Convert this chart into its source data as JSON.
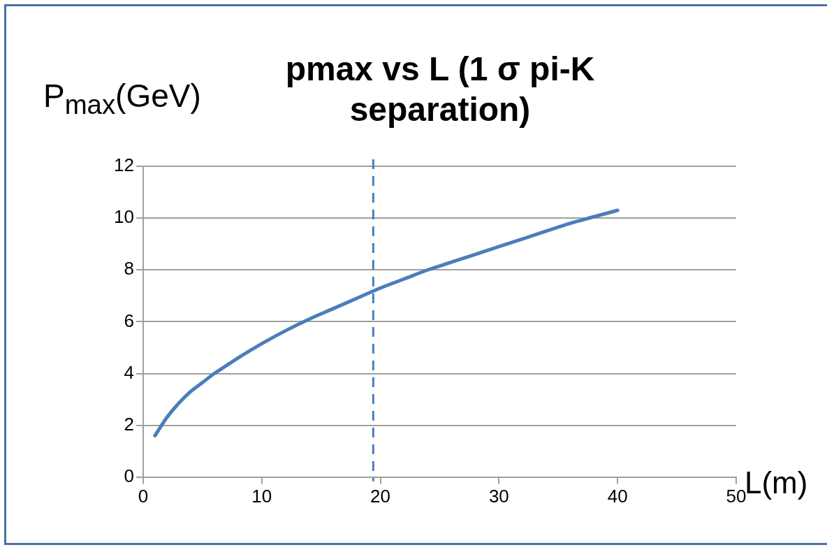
{
  "chart_data": {
    "type": "line",
    "title": "pmax vs L (1 σ pi-K separation)",
    "xlabel": "L(m)",
    "ylabel": "P$_{max}$(GeV)",
    "series": [
      {
        "color": "#4a7ebb",
        "x": [
          1,
          2,
          3,
          4,
          5,
          6,
          7,
          8,
          10,
          12,
          14,
          16,
          18,
          20,
          22,
          24,
          26,
          28,
          30,
          32,
          34,
          36,
          38,
          40
        ],
        "values": [
          1.6,
          2.3,
          2.85,
          3.3,
          3.65,
          4.0,
          4.3,
          4.6,
          5.15,
          5.65,
          6.1,
          6.5,
          6.9,
          7.3,
          7.65,
          8.0,
          8.3,
          8.6,
          8.9,
          9.2,
          9.5,
          9.8,
          10.05,
          10.3
        ]
      }
    ],
    "xlim": [
      0,
      50
    ],
    "xticks": [
      0,
      10,
      20,
      30,
      40,
      50
    ],
    "ylim": [
      0,
      12
    ],
    "yticks": [
      0,
      2,
      4,
      6,
      8,
      10,
      12
    ],
    "grid": "y",
    "legend": false,
    "marker": "none",
    "line_style": "solid",
    "ref_lines": [
      {
        "axis": "x",
        "value": 19.4,
        "color": "#4a7ebb",
        "line_style": "dashed"
      }
    ]
  }
}
